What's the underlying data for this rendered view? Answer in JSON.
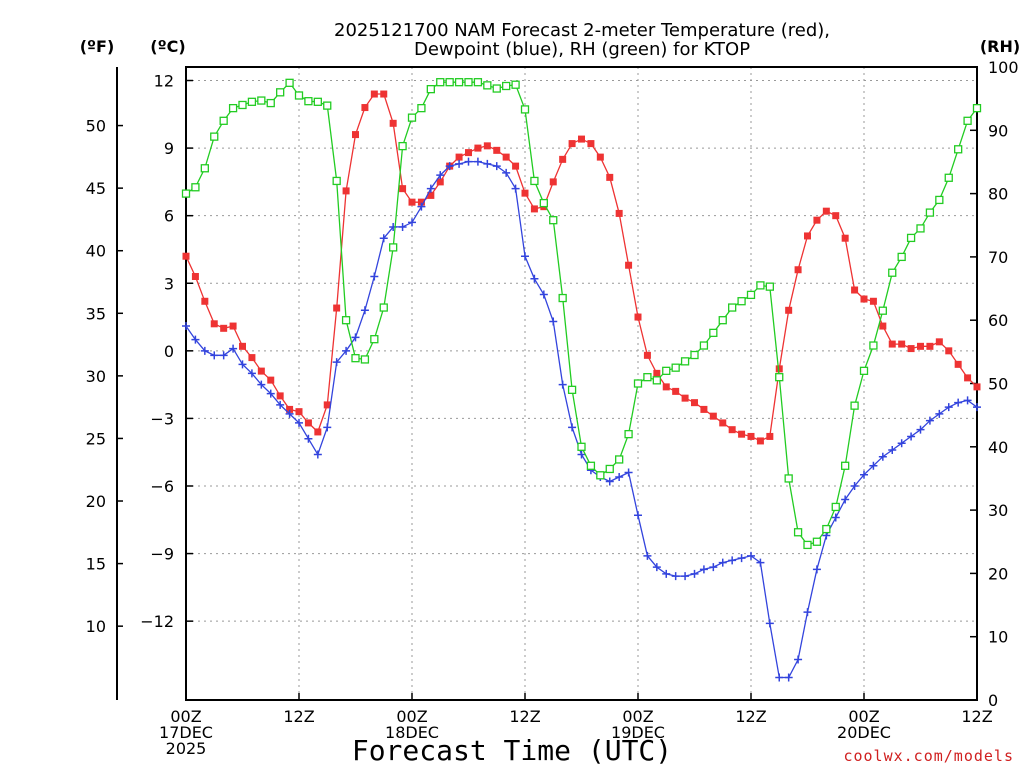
{
  "chart_data": {
    "type": "line",
    "title_line1": "2025121700 NAM Forecast 2-meter Temperature (red),",
    "title_line2": "Dewpoint (blue), RH (green) for KTOP",
    "xlabel": "Forecast Time (UTC)",
    "credit": "coolwx.com/models",
    "unit_f": "(ºF)",
    "unit_c": "(ºC)",
    "unit_rh": "(RH)",
    "x_range": [
      0,
      84
    ],
    "c_range": [
      -15.5,
      12.6
    ],
    "rh_range": [
      0,
      100
    ],
    "f_ticks": [
      "50",
      "45",
      "40",
      "35",
      "30",
      "25",
      "20",
      "15",
      "10"
    ],
    "f_tick_values": [
      50,
      45,
      40,
      35,
      30,
      25,
      20,
      15,
      10
    ],
    "c_ticks": [
      "12",
      "9",
      "6",
      "3",
      "0",
      "−3",
      "−6",
      "−9",
      "−12"
    ],
    "c_tick_values": [
      12,
      9,
      6,
      3,
      0,
      -3,
      -6,
      -9,
      -12
    ],
    "rh_ticks": [
      "100",
      "90",
      "80",
      "70",
      "60",
      "50",
      "40",
      "30",
      "20",
      "10",
      "0"
    ],
    "rh_tick_values": [
      100,
      90,
      80,
      70,
      60,
      50,
      40,
      30,
      20,
      10,
      0
    ],
    "x_ticks": [
      {
        "hour": 0,
        "lines": [
          "00Z",
          "17DEC",
          "2025"
        ]
      },
      {
        "hour": 12,
        "lines": [
          "12Z"
        ]
      },
      {
        "hour": 24,
        "lines": [
          "00Z",
          "18DEC"
        ]
      },
      {
        "hour": 36,
        "lines": [
          "12Z"
        ]
      },
      {
        "hour": 48,
        "lines": [
          "00Z",
          "19DEC"
        ]
      },
      {
        "hour": 60,
        "lines": [
          "12Z"
        ]
      },
      {
        "hour": 72,
        "lines": [
          "00Z",
          "20DEC"
        ]
      },
      {
        "hour": 84,
        "lines": [
          "12Z"
        ]
      }
    ],
    "series": [
      {
        "name": "Temperature",
        "axis": "C",
        "color": "#ee3333",
        "marker": "filled-square",
        "x": [
          0,
          1,
          2,
          3,
          4,
          5,
          6,
          7,
          8,
          9,
          10,
          11,
          12,
          13,
          14,
          15,
          16,
          17,
          18,
          19,
          20,
          21,
          22,
          23,
          24,
          25,
          26,
          27,
          28,
          29,
          30,
          31,
          32,
          33,
          34,
          35,
          36,
          37,
          38,
          39,
          40,
          41,
          42,
          43,
          44,
          45,
          46,
          47,
          48,
          49,
          50,
          51,
          52,
          53,
          54,
          55,
          56,
          57,
          58,
          59,
          60,
          61,
          62,
          63,
          64,
          65,
          66,
          67,
          68,
          69,
          70,
          71,
          72,
          73,
          74,
          75,
          76,
          77,
          78,
          79,
          80,
          81,
          82,
          83,
          84
        ],
        "values": [
          4.2,
          3.3,
          2.2,
          1.2,
          1.0,
          1.1,
          0.2,
          -0.3,
          -0.9,
          -1.3,
          -2.0,
          -2.6,
          -2.7,
          -3.2,
          -3.6,
          -2.4,
          1.9,
          7.1,
          9.6,
          10.8,
          11.4,
          11.4,
          10.1,
          7.2,
          6.6,
          6.6,
          6.9,
          7.5,
          8.2,
          8.6,
          8.8,
          9.0,
          9.1,
          8.9,
          8.6,
          8.2,
          7.0,
          6.3,
          6.4,
          7.5,
          8.5,
          9.2,
          9.4,
          9.2,
          8.6,
          7.7,
          6.1,
          3.8,
          1.5,
          -0.2,
          -1.0,
          -1.6,
          -1.8,
          -2.1,
          -2.3,
          -2.6,
          -2.9,
          -3.2,
          -3.5,
          -3.7,
          -3.8,
          -4.0,
          -3.8,
          -0.8,
          1.8,
          3.6,
          5.1,
          5.8,
          6.2,
          6.0,
          5.0,
          2.7,
          2.3,
          2.2,
          1.1,
          0.3,
          0.3,
          0.1,
          0.2,
          0.2,
          0.4,
          0.0,
          -0.6,
          -1.2,
          -1.6
        ]
      },
      {
        "name": "Dewpoint",
        "axis": "C",
        "color": "#3344dd",
        "marker": "plus",
        "x": [
          0,
          1,
          2,
          3,
          4,
          5,
          6,
          7,
          8,
          9,
          10,
          11,
          12,
          13,
          14,
          15,
          16,
          17,
          18,
          19,
          20,
          21,
          22,
          23,
          24,
          25,
          26,
          27,
          28,
          29,
          30,
          31,
          32,
          33,
          34,
          35,
          36,
          37,
          38,
          39,
          40,
          41,
          42,
          43,
          44,
          45,
          46,
          47,
          48,
          49,
          50,
          51,
          52,
          53,
          54,
          55,
          56,
          57,
          58,
          59,
          60,
          61,
          62,
          63,
          64,
          65,
          66,
          67,
          68,
          69,
          70,
          71,
          72,
          73,
          74,
          75,
          76,
          77,
          78,
          79,
          80,
          81,
          82,
          83,
          84
        ],
        "values": [
          1.1,
          0.5,
          0.0,
          -0.2,
          -0.2,
          0.1,
          -0.6,
          -1.0,
          -1.5,
          -1.9,
          -2.4,
          -2.8,
          -3.2,
          -3.9,
          -4.6,
          -3.4,
          -0.5,
          0.0,
          0.6,
          1.8,
          3.3,
          5.0,
          5.5,
          5.5,
          5.7,
          6.4,
          7.2,
          7.8,
          8.2,
          8.3,
          8.4,
          8.4,
          8.3,
          8.2,
          7.9,
          7.2,
          4.2,
          3.2,
          2.5,
          1.3,
          -1.5,
          -3.4,
          -4.6,
          -5.3,
          -5.6,
          -5.8,
          -5.6,
          -5.4,
          -7.3,
          -9.1,
          -9.6,
          -9.9,
          -10.0,
          -10.0,
          -9.9,
          -9.7,
          -9.6,
          -9.4,
          -9.3,
          -9.2,
          -9.1,
          -9.4,
          -12.1,
          -14.5,
          -14.5,
          -13.7,
          -11.6,
          -9.7,
          -8.2,
          -7.4,
          -6.6,
          -6.0,
          -5.5,
          -5.1,
          -4.7,
          -4.4,
          -4.1,
          -3.8,
          -3.5,
          -3.1,
          -2.8,
          -2.5,
          -2.3,
          -2.2,
          -2.5
        ]
      },
      {
        "name": "Relative Humidity",
        "axis": "RH",
        "color": "#22cc22",
        "marker": "open-square",
        "x": [
          0,
          1,
          2,
          3,
          4,
          5,
          6,
          7,
          8,
          9,
          10,
          11,
          12,
          13,
          14,
          15,
          16,
          17,
          18,
          19,
          20,
          21,
          22,
          23,
          24,
          25,
          26,
          27,
          28,
          29,
          30,
          31,
          32,
          33,
          34,
          35,
          36,
          37,
          38,
          39,
          40,
          41,
          42,
          43,
          44,
          45,
          46,
          47,
          48,
          49,
          50,
          51,
          52,
          53,
          54,
          55,
          56,
          57,
          58,
          59,
          60,
          61,
          62,
          63,
          64,
          65,
          66,
          67,
          68,
          69,
          70,
          71,
          72,
          73,
          74,
          75,
          76,
          77,
          78,
          79,
          80,
          81,
          82,
          83,
          84
        ],
        "values": [
          80.0,
          81.0,
          84.0,
          89.0,
          91.5,
          93.5,
          94.0,
          94.5,
          94.7,
          94.3,
          96.0,
          97.5,
          95.5,
          94.6,
          94.5,
          93.9,
          82.0,
          60.0,
          54.0,
          53.8,
          57.0,
          62.0,
          71.5,
          87.5,
          92.0,
          93.5,
          96.5,
          97.6,
          97.6,
          97.6,
          97.6,
          97.6,
          97.1,
          96.6,
          97.0,
          97.2,
          93.3,
          82.0,
          78.5,
          75.8,
          63.5,
          49.0,
          40.0,
          37.0,
          35.5,
          36.5,
          38.0,
          42.0,
          50.0,
          51.0,
          50.5,
          52.0,
          52.5,
          53.5,
          54.5,
          56.0,
          58.0,
          60.0,
          62.0,
          63.0,
          64.0,
          65.5,
          65.3,
          51.0,
          35.0,
          26.5,
          24.5,
          25.0,
          27.0,
          30.5,
          37.0,
          46.5,
          52.0,
          56.0,
          61.5,
          67.5,
          70.0,
          73.0,
          74.5,
          77.0,
          79.0,
          82.5,
          87.0,
          91.5,
          93.5
        ]
      }
    ]
  }
}
